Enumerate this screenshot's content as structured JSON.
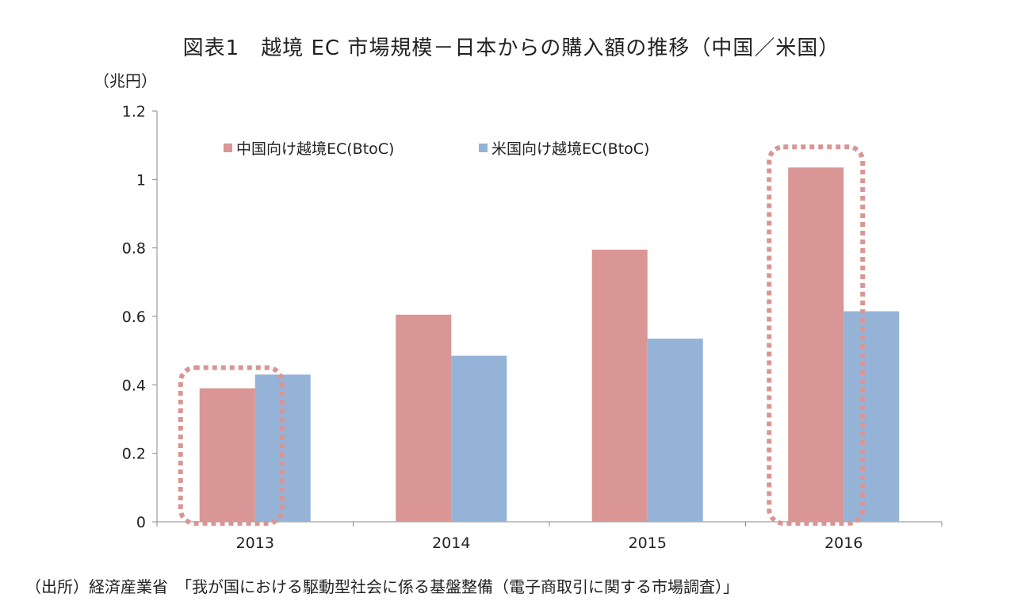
{
  "title": "図表1　越境 EC 市場規模－日本からの購入額の推移（中国／米国）",
  "unit_label": "（兆円）",
  "source_text": "（出所）経済産業省　「我が国における駆動型社会に係る基盤整備（電子商取引に関する市場調査）」",
  "chart_data": {
    "type": "bar",
    "categories": [
      "2013",
      "2014",
      "2015",
      "2016"
    ],
    "series": [
      {
        "name": "中国向け越境EC(BtoC)",
        "values": [
          0.39,
          0.605,
          0.795,
          1.035
        ],
        "color": "#d99694"
      },
      {
        "name": "米国向け越境EC(BtoC)",
        "values": [
          0.43,
          0.485,
          0.535,
          0.615
        ],
        "color": "#95b3d7"
      }
    ],
    "ylim": [
      0,
      1.2
    ],
    "yticks": [
      "0",
      "0.2",
      "0.4",
      "0.6",
      "0.8",
      "1",
      "1.2"
    ],
    "highlighted_categories": [
      "2013",
      "2016"
    ],
    "highlight_color": "#d99694",
    "legend_position": "top-left",
    "grid": false
  }
}
